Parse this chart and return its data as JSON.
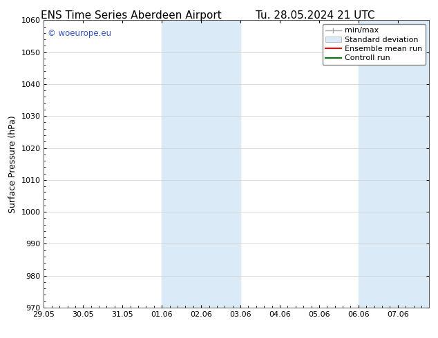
{
  "title_left": "ENS Time Series Aberdeen Airport",
  "title_right": "Tu. 28.05.2024 21 UTC",
  "ylabel": "Surface Pressure (hPa)",
  "ylim": [
    970,
    1060
  ],
  "yticks": [
    970,
    980,
    990,
    1000,
    1010,
    1020,
    1030,
    1040,
    1050,
    1060
  ],
  "xtick_labels": [
    "29.05",
    "30.05",
    "31.05",
    "01.06",
    "02.06",
    "03.06",
    "04.06",
    "05.06",
    "06.06",
    "07.06"
  ],
  "xtick_days": [
    0,
    1,
    2,
    3,
    4,
    5,
    6,
    7,
    8,
    9
  ],
  "xlim": [
    0,
    9.8
  ],
  "band1_start": 3.0,
  "band1_end": 5.0,
  "band2_start": 8.0,
  "band2_end": 9.8,
  "band_color": "#daeaf7",
  "watermark": "© woeurope.eu",
  "watermark_color": "#3355cc",
  "background_color": "#ffffff",
  "legend_minmax_color": "#aaaaaa",
  "legend_std_color": "#daeaf7",
  "legend_std_edge": "#aaaaaa",
  "legend_mean_color": "#ff0000",
  "legend_ctrl_color": "#007700",
  "title_fontsize": 11,
  "axis_fontsize": 9,
  "tick_fontsize": 8,
  "legend_fontsize": 8
}
